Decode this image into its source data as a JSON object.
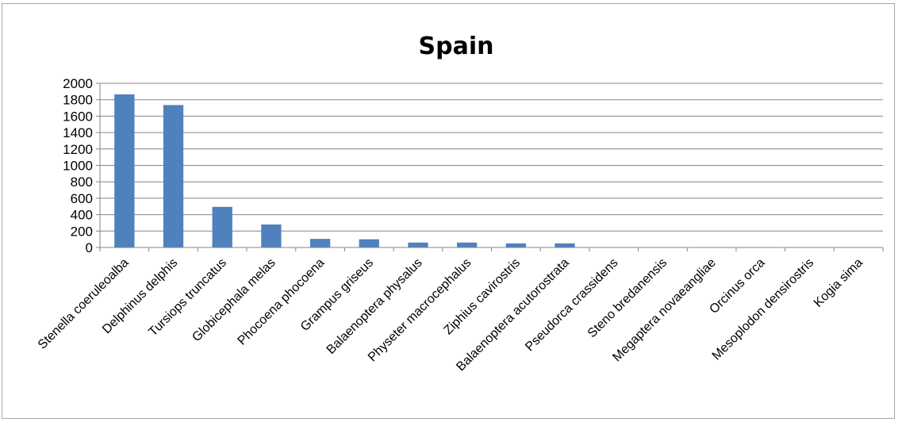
{
  "chart_data": {
    "type": "bar",
    "title": "Spain",
    "xlabel": "",
    "ylabel": "",
    "ylim": [
      0,
      2000
    ],
    "yticks": [
      0,
      200,
      400,
      600,
      800,
      1000,
      1200,
      1400,
      1600,
      1800,
      2000
    ],
    "grid": true,
    "legend": "none",
    "bar_color": "#4f81bd",
    "categories": [
      "Stenella coeruleoalba",
      "Delphinus delphis",
      "Tursiops truncatus",
      "Globicephala melas",
      "Phocoena phocoena",
      "Grampus griseus",
      "Balaenoptera physalus",
      "Physeter macrocephalus",
      "Ziphius cavirostris",
      "Balaenoptera acutorostrata",
      "Pseudorca crassidens",
      "Steno bredanensis",
      "Megaptera novaeangliae",
      "Orcinus orca",
      "Mesoplodon densirostris",
      "Kogia sima"
    ],
    "values": [
      1865,
      1735,
      495,
      280,
      105,
      100,
      60,
      60,
      50,
      50,
      0,
      0,
      0,
      0,
      0,
      0
    ]
  }
}
